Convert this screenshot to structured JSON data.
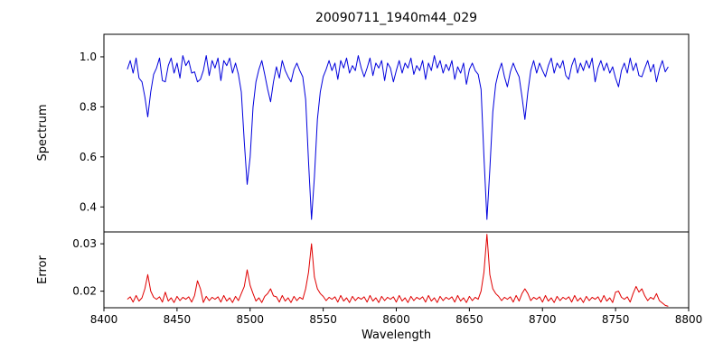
{
  "figure": {
    "title": "20090711_1940m44_029",
    "xlabel": "Wavelength",
    "background": "#ffffff",
    "axis_color": "#000000"
  },
  "chart_data": {
    "type": "line",
    "title": "20090711_1940m44_029",
    "xlabel": "Wavelength",
    "xlim": [
      8400,
      8800
    ],
    "xticks": [
      8400,
      8450,
      8500,
      8550,
      8600,
      8650,
      8700,
      8750,
      8800
    ],
    "xtick_labels": [
      "8400",
      "8450",
      "8500",
      "8550",
      "8600",
      "8650",
      "8700",
      "8750",
      "8800"
    ],
    "grid": false,
    "legend": "none",
    "panels": [
      {
        "name": "spectrum",
        "ylabel": "Spectrum",
        "color": "#0000dd",
        "ylim": [
          0.3,
          1.09
        ],
        "yticks": [
          0.4,
          0.6,
          0.8,
          1.0
        ],
        "ytick_labels": [
          "0.4",
          "0.6",
          "0.8",
          "1.0"
        ],
        "x0": 8416,
        "dx": 2,
        "values": [
          0.95,
          0.985,
          0.935,
          0.995,
          0.915,
          0.9,
          0.84,
          0.76,
          0.86,
          0.93,
          0.955,
          0.995,
          0.905,
          0.9,
          0.965,
          0.995,
          0.935,
          0.975,
          0.915,
          1.005,
          0.965,
          0.985,
          0.935,
          0.94,
          0.9,
          0.91,
          0.945,
          1.005,
          0.925,
          0.985,
          0.955,
          0.995,
          0.905,
          0.985,
          0.965,
          0.995,
          0.935,
          0.975,
          0.93,
          0.86,
          0.66,
          0.49,
          0.6,
          0.8,
          0.9,
          0.95,
          0.985,
          0.93,
          0.87,
          0.82,
          0.9,
          0.96,
          0.915,
          0.985,
          0.945,
          0.92,
          0.9,
          0.95,
          0.975,
          0.945,
          0.92,
          0.83,
          0.58,
          0.35,
          0.52,
          0.75,
          0.86,
          0.92,
          0.95,
          0.985,
          0.945,
          0.975,
          0.91,
          0.985,
          0.955,
          0.995,
          0.935,
          0.965,
          0.945,
          1.005,
          0.955,
          0.92,
          0.955,
          0.995,
          0.925,
          0.975,
          0.955,
          0.985,
          0.905,
          0.975,
          0.955,
          0.9,
          0.945,
          0.985,
          0.935,
          0.975,
          0.955,
          0.995,
          0.93,
          0.965,
          0.945,
          0.985,
          0.91,
          0.975,
          0.945,
          1.005,
          0.955,
          0.985,
          0.935,
          0.97,
          0.945,
          0.985,
          0.91,
          0.96,
          0.935,
          0.975,
          0.89,
          0.95,
          0.975,
          0.945,
          0.93,
          0.87,
          0.6,
          0.35,
          0.55,
          0.78,
          0.89,
          0.94,
          0.975,
          0.92,
          0.88,
          0.94,
          0.975,
          0.945,
          0.92,
          0.84,
          0.75,
          0.86,
          0.945,
          0.985,
          0.935,
          0.975,
          0.945,
          0.92,
          0.965,
          0.995,
          0.935,
          0.975,
          0.955,
          0.985,
          0.925,
          0.91,
          0.965,
          0.995,
          0.935,
          0.975,
          0.945,
          0.985,
          0.955,
          0.995,
          0.9,
          0.955,
          0.985,
          0.945,
          0.975,
          0.935,
          0.96,
          0.915,
          0.88,
          0.945,
          0.975,
          0.935,
          0.995,
          0.945,
          0.975,
          0.925,
          0.92,
          0.955,
          0.985,
          0.94,
          0.97,
          0.9,
          0.95,
          0.985,
          0.94,
          0.96
        ]
      },
      {
        "name": "error",
        "ylabel": "Error",
        "color": "#e00000",
        "ylim": [
          0.0165,
          0.0325
        ],
        "yticks": [
          0.02,
          0.03
        ],
        "ytick_labels": [
          "0.02",
          "0.03"
        ],
        "x0": 8416,
        "dx": 2,
        "values": [
          0.0183,
          0.0188,
          0.0177,
          0.0191,
          0.0179,
          0.0186,
          0.0205,
          0.0235,
          0.02,
          0.0187,
          0.0183,
          0.0188,
          0.0177,
          0.0198,
          0.0179,
          0.0186,
          0.0176,
          0.0189,
          0.018,
          0.0187,
          0.0183,
          0.0188,
          0.0177,
          0.0191,
          0.0222,
          0.0205,
          0.0176,
          0.0189,
          0.018,
          0.0187,
          0.0183,
          0.0188,
          0.0177,
          0.0191,
          0.0179,
          0.0186,
          0.0176,
          0.0189,
          0.018,
          0.0195,
          0.021,
          0.0245,
          0.0212,
          0.0195,
          0.0179,
          0.0186,
          0.0176,
          0.0189,
          0.0195,
          0.0205,
          0.019,
          0.0188,
          0.0177,
          0.0191,
          0.0179,
          0.0186,
          0.0176,
          0.0189,
          0.018,
          0.0187,
          0.0183,
          0.0205,
          0.024,
          0.03,
          0.023,
          0.0205,
          0.0195,
          0.0189,
          0.018,
          0.0187,
          0.0183,
          0.0188,
          0.0177,
          0.0191,
          0.0179,
          0.0186,
          0.0176,
          0.0189,
          0.018,
          0.0187,
          0.0183,
          0.0188,
          0.0177,
          0.0191,
          0.0179,
          0.0186,
          0.0176,
          0.0189,
          0.018,
          0.0187,
          0.0183,
          0.0188,
          0.0177,
          0.0191,
          0.0179,
          0.0186,
          0.0176,
          0.0189,
          0.018,
          0.0187,
          0.0183,
          0.0188,
          0.0177,
          0.0191,
          0.0179,
          0.0186,
          0.0176,
          0.0189,
          0.018,
          0.0187,
          0.0183,
          0.0188,
          0.0177,
          0.0191,
          0.0179,
          0.0186,
          0.0176,
          0.0189,
          0.018,
          0.0187,
          0.0183,
          0.02,
          0.024,
          0.032,
          0.0235,
          0.0205,
          0.0195,
          0.0189,
          0.018,
          0.0187,
          0.0183,
          0.0188,
          0.0177,
          0.0191,
          0.0179,
          0.0195,
          0.0205,
          0.0195,
          0.018,
          0.0187,
          0.0183,
          0.0188,
          0.0177,
          0.0191,
          0.0179,
          0.0186,
          0.0176,
          0.0189,
          0.018,
          0.0187,
          0.0183,
          0.0188,
          0.0177,
          0.0191,
          0.0179,
          0.0186,
          0.0176,
          0.0189,
          0.018,
          0.0187,
          0.0183,
          0.0188,
          0.0177,
          0.0191,
          0.0179,
          0.0186,
          0.0176,
          0.0198,
          0.02,
          0.0187,
          0.0183,
          0.0188,
          0.0177,
          0.0195,
          0.021,
          0.0198,
          0.0205,
          0.019,
          0.018,
          0.0187,
          0.0183,
          0.0195,
          0.018,
          0.0175,
          0.017,
          0.0168
        ]
      }
    ]
  }
}
